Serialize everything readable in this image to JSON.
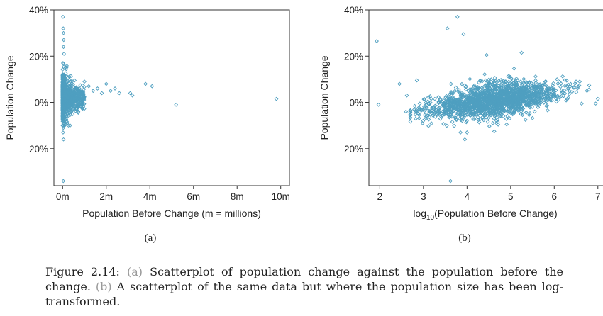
{
  "chart_data": [
    {
      "type": "scatter",
      "panel": "(a)",
      "xlabel": "Population Before Change (m = millions)",
      "ylabel": "Population Change",
      "xlim": [
        -0.4,
        10.4
      ],
      "ylim": [
        -0.36,
        0.4
      ],
      "xticks": [
        0,
        2,
        4,
        6,
        8,
        10
      ],
      "xtick_labels": [
        "0m",
        "2m",
        "4m",
        "6m",
        "8m",
        "10m"
      ],
      "yticks": [
        -0.2,
        0,
        0.2,
        0.4
      ],
      "ytick_labels": [
        "−20%",
        "0%",
        "20%",
        "40%"
      ],
      "marker_color": "#4f9fc0",
      "bulk": {
        "n": 900,
        "x_range_m": [
          0,
          1.0
        ],
        "y_center": 0.02,
        "y_spread": 0.05
      },
      "points": [
        {
          "x": 0.02,
          "y": 0.37
        },
        {
          "x": 0.03,
          "y": 0.32
        },
        {
          "x": 0.04,
          "y": 0.3
        },
        {
          "x": 0.05,
          "y": 0.27
        },
        {
          "x": 0.04,
          "y": 0.24
        },
        {
          "x": 0.06,
          "y": 0.21
        },
        {
          "x": 0.03,
          "y": -0.11
        },
        {
          "x": 0.02,
          "y": -0.13
        },
        {
          "x": 0.04,
          "y": -0.16
        },
        {
          "x": 0.03,
          "y": -0.34
        },
        {
          "x": 1.0,
          "y": 0.09
        },
        {
          "x": 1.2,
          "y": 0.07
        },
        {
          "x": 1.4,
          "y": 0.05
        },
        {
          "x": 1.6,
          "y": 0.06
        },
        {
          "x": 1.8,
          "y": 0.04
        },
        {
          "x": 2.0,
          "y": 0.08
        },
        {
          "x": 2.2,
          "y": 0.05
        },
        {
          "x": 2.4,
          "y": 0.06
        },
        {
          "x": 2.6,
          "y": 0.04
        },
        {
          "x": 3.1,
          "y": 0.04
        },
        {
          "x": 3.2,
          "y": 0.03
        },
        {
          "x": 3.8,
          "y": 0.08
        },
        {
          "x": 4.1,
          "y": 0.07
        },
        {
          "x": 5.2,
          "y": -0.01
        },
        {
          "x": 9.8,
          "y": 0.015
        }
      ]
    },
    {
      "type": "scatter",
      "panel": "(b)",
      "xlabel": "log10(Population Before Change)",
      "ylabel": "Population Change",
      "xlim": [
        1.75,
        7.15
      ],
      "ylim": [
        -0.36,
        0.4
      ],
      "xticks": [
        2,
        3,
        4,
        5,
        6,
        7
      ],
      "xtick_labels": [
        "2",
        "3",
        "4",
        "5",
        "6",
        "7"
      ],
      "yticks": [
        -0.2,
        0,
        0.2,
        0.4
      ],
      "ytick_labels": [
        "−20%",
        "0%",
        "20%",
        "40%"
      ],
      "marker_color": "#4f9fc0",
      "bulk": {
        "n": 1800,
        "x_center": 4.6,
        "x_spread": 0.75,
        "y_center": 0.01,
        "y_slope": 0.025,
        "y_spread": 0.04
      },
      "points": [
        {
          "x": 1.93,
          "y": 0.265
        },
        {
          "x": 1.97,
          "y": -0.01
        },
        {
          "x": 3.78,
          "y": 0.37
        },
        {
          "x": 3.55,
          "y": 0.32
        },
        {
          "x": 3.92,
          "y": 0.295
        },
        {
          "x": 3.62,
          "y": -0.34
        },
        {
          "x": 3.95,
          "y": -0.16
        },
        {
          "x": 3.85,
          "y": -0.13
        },
        {
          "x": 6.95,
          "y": -0.005
        },
        {
          "x": 7.0,
          "y": 0.015
        },
        {
          "x": 2.45,
          "y": 0.08
        },
        {
          "x": 2.62,
          "y": 0.03
        },
        {
          "x": 2.6,
          "y": -0.04
        },
        {
          "x": 2.85,
          "y": 0.095
        },
        {
          "x": 2.98,
          "y": -0.09
        },
        {
          "x": 4.45,
          "y": 0.205
        },
        {
          "x": 5.25,
          "y": 0.215
        },
        {
          "x": 6.5,
          "y": 0.09
        },
        {
          "x": 6.75,
          "y": 0.05
        },
        {
          "x": 4.0,
          "y": -0.13
        }
      ]
    }
  ],
  "caption": {
    "prefix": "Figure 2.14:",
    "ref_a": "(a)",
    "text_a": "Scatterplot of population change against the population before the change.",
    "ref_b": "(b)",
    "text_b": "A scatterplot of the same data but where the population size has been log-transformed."
  }
}
